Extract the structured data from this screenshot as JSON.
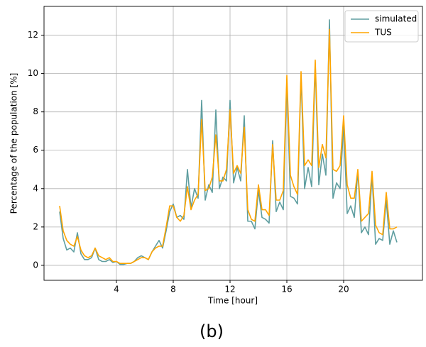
{
  "chart_data": {
    "type": "line",
    "xlabel": "Time [hour]",
    "ylabel": "Percentage of the population [%]",
    "caption": "(b)",
    "x": [
      0,
      0.25,
      0.5,
      0.75,
      1,
      1.25,
      1.5,
      1.75,
      2,
      2.25,
      2.5,
      2.75,
      3,
      3.25,
      3.5,
      3.75,
      4,
      4.25,
      4.5,
      4.75,
      5,
      5.25,
      5.5,
      5.75,
      6,
      6.25,
      6.5,
      6.75,
      7,
      7.25,
      7.5,
      7.75,
      8,
      8.25,
      8.5,
      8.75,
      9,
      9.25,
      9.5,
      9.75,
      10,
      10.25,
      10.5,
      10.75,
      11,
      11.25,
      11.5,
      11.75,
      12,
      12.25,
      12.5,
      12.75,
      13,
      13.25,
      13.5,
      13.75,
      14,
      14.25,
      14.5,
      14.75,
      15,
      15.25,
      15.5,
      15.75,
      16,
      16.25,
      16.5,
      16.75,
      17,
      17.25,
      17.5,
      17.75,
      18,
      18.25,
      18.5,
      18.75,
      19,
      19.25,
      19.5,
      19.75,
      20,
      20.25,
      20.5,
      20.75,
      21,
      21.25,
      21.5,
      21.75,
      22,
      22.25,
      22.5,
      22.75,
      23,
      23.25,
      23.5,
      23.75
    ],
    "series": [
      {
        "name": "simulated",
        "color": "#5f9ea0",
        "values": [
          2.8,
          1.4,
          0.8,
          0.9,
          0.7,
          1.7,
          0.6,
          0.3,
          0.3,
          0.4,
          0.9,
          0.3,
          0.2,
          0.2,
          0.3,
          0.15,
          0.2,
          0.05,
          0.05,
          0.1,
          0.1,
          0.2,
          0.4,
          0.5,
          0.4,
          0.3,
          0.7,
          1.0,
          1.3,
          0.9,
          1.8,
          2.8,
          3.2,
          2.5,
          2.6,
          2.4,
          5.0,
          3.0,
          4.0,
          3.5,
          8.6,
          3.4,
          4.2,
          3.8,
          8.1,
          4.0,
          4.6,
          4.4,
          8.6,
          4.3,
          5.1,
          4.4,
          7.8,
          2.3,
          2.3,
          1.9,
          3.9,
          2.5,
          2.4,
          2.2,
          6.5,
          2.8,
          3.3,
          2.9,
          9.6,
          3.6,
          3.5,
          3.2,
          9.9,
          4.0,
          5.1,
          4.1,
          10.5,
          4.2,
          5.8,
          4.7,
          12.8,
          3.5,
          4.3,
          4.0,
          7.4,
          2.7,
          3.1,
          2.5,
          4.9,
          1.7,
          2.0,
          1.6,
          4.7,
          1.1,
          1.4,
          1.3,
          3.4,
          1.1,
          1.8,
          1.2
        ]
      },
      {
        "name": "TUS",
        "color": "#ffa500",
        "values": [
          3.1,
          1.8,
          1.3,
          1.1,
          1.0,
          1.5,
          0.8,
          0.5,
          0.4,
          0.5,
          0.9,
          0.5,
          0.4,
          0.3,
          0.4,
          0.2,
          0.2,
          0.1,
          0.1,
          0.1,
          0.1,
          0.2,
          0.3,
          0.4,
          0.4,
          0.3,
          0.7,
          0.9,
          1.0,
          1.0,
          2.0,
          3.1,
          3.1,
          2.5,
          2.3,
          2.6,
          4.1,
          2.9,
          3.4,
          3.7,
          7.6,
          3.9,
          4.0,
          4.6,
          6.8,
          4.4,
          4.4,
          5.0,
          8.1,
          4.8,
          5.2,
          4.8,
          7.2,
          2.9,
          2.4,
          2.3,
          4.2,
          2.9,
          2.9,
          2.6,
          6.3,
          3.4,
          3.4,
          3.9,
          9.9,
          4.7,
          4.1,
          3.7,
          10.1,
          5.2,
          5.5,
          5.2,
          10.7,
          5.1,
          6.3,
          5.6,
          12.3,
          5.0,
          4.9,
          5.2,
          7.8,
          4.2,
          3.5,
          3.5,
          5.0,
          2.3,
          2.5,
          2.7,
          4.9,
          2.1,
          1.7,
          1.6,
          3.8,
          1.9,
          1.9,
          2.0
        ]
      }
    ],
    "xlim": [
      -1.1,
      25.55
    ],
    "ylim": [
      -0.78,
      13.5
    ],
    "xticks": [
      4,
      8,
      12,
      16,
      20
    ],
    "yticks": [
      0,
      2,
      4,
      6,
      8,
      10,
      12
    ],
    "grid": true,
    "legend": "upper right"
  }
}
